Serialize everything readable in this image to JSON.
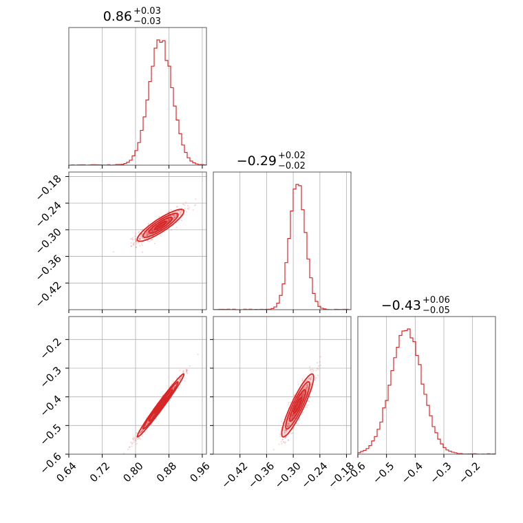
{
  "chart_data": {
    "type": "corner",
    "color": "#d62728",
    "titles": [
      {
        "value": "0.86",
        "plus": "+0.03",
        "minus": "−0.03"
      },
      {
        "value": "−0.29",
        "plus": "+0.02",
        "minus": "−0.02"
      },
      {
        "value": "−0.43",
        "plus": "+0.06",
        "minus": "−0.05"
      }
    ],
    "params": [
      {
        "range": [
          0.64,
          0.97
        ],
        "ticks": [
          0.64,
          0.72,
          0.8,
          0.88,
          0.96
        ],
        "tick_labels": [
          "0.64",
          "0.72",
          "0.80",
          "0.88",
          "0.96"
        ]
      },
      {
        "range": [
          -0.48,
          -0.17
        ],
        "ticks": [
          -0.42,
          -0.36,
          -0.3,
          -0.24,
          -0.18
        ],
        "tick_labels": [
          "−0.42",
          "−0.36",
          "−0.30",
          "−0.24",
          "−0.18"
        ]
      },
      {
        "range": [
          -0.6,
          -0.12
        ],
        "ticks": [
          -0.6,
          -0.5,
          -0.4,
          -0.3,
          -0.2
        ],
        "tick_labels": [
          "−0.6",
          "−0.5",
          "−0.4",
          "−0.3",
          "−0.2"
        ]
      }
    ],
    "hist_1d": [
      {
        "param": 0,
        "bins": 50,
        "mean": 0.86,
        "sd": 0.028
      },
      {
        "param": 1,
        "bins": 50,
        "mean": -0.29,
        "sd": 0.018
      },
      {
        "param": 2,
        "bins": 50,
        "mean": -0.43,
        "sd": 0.055
      }
    ],
    "scatter_2d": [
      {
        "x_param": 0,
        "y_param": 1,
        "center": [
          0.86,
          -0.29
        ],
        "sd_x": 0.028,
        "sd_y": 0.018,
        "correlation": 0.88
      },
      {
        "x_param": 0,
        "y_param": 2,
        "center": [
          0.86,
          -0.43
        ],
        "sd_x": 0.028,
        "sd_y": 0.055,
        "correlation": 0.985
      },
      {
        "x_param": 1,
        "y_param": 2,
        "center": [
          -0.29,
          -0.43
        ],
        "sd_x": 0.018,
        "sd_y": 0.055,
        "correlation": 0.9
      }
    ],
    "grid": true
  }
}
